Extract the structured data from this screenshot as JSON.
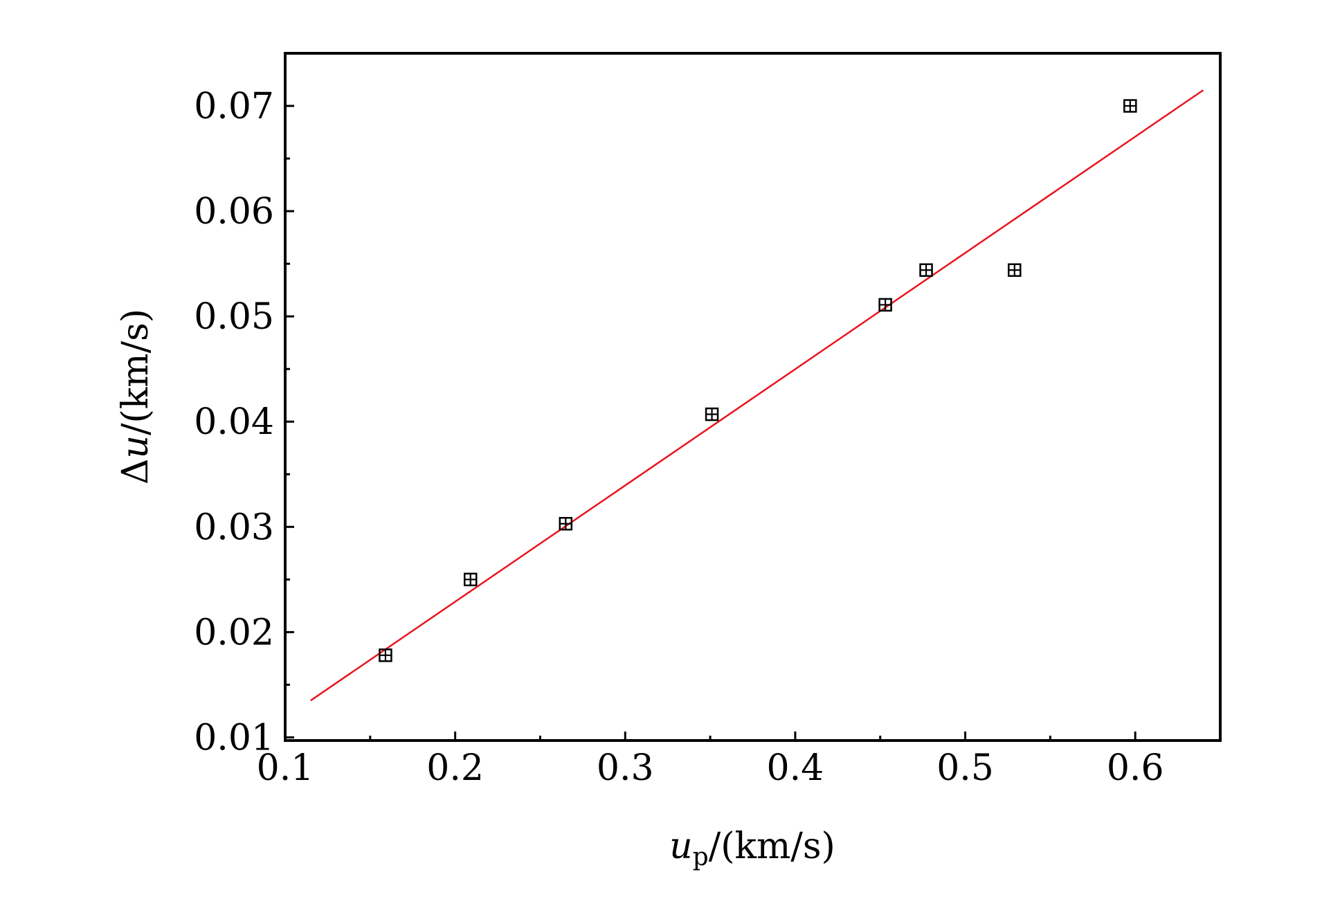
{
  "chart_data": {
    "type": "scatter",
    "xlabel": {
      "var": "u",
      "sub": "p",
      "unit": "/(km/s)"
    },
    "ylabel": {
      "prefix": "Δ",
      "var": "u",
      "unit": "/(km/s)"
    },
    "xlim": [
      0.1,
      0.65
    ],
    "ylim": [
      0.0097,
      0.075
    ],
    "x_ticks": [
      0.1,
      0.2,
      0.3,
      0.4,
      0.5,
      0.6
    ],
    "x_tick_labels": [
      "0.1",
      "0.2",
      "0.3",
      "0.4",
      "0.5",
      "0.6"
    ],
    "y_ticks": [
      0.01,
      0.02,
      0.03,
      0.04,
      0.05,
      0.06,
      0.07
    ],
    "y_tick_labels": [
      "0.01",
      "0.02",
      "0.03",
      "0.04",
      "0.05",
      "0.06",
      "0.07"
    ],
    "grid": false,
    "series": [
      {
        "type": "scatter",
        "marker": "square-cross",
        "color": "#000000",
        "x": [
          0.159,
          0.209,
          0.265,
          0.351,
          0.453,
          0.477,
          0.529,
          0.597
        ],
        "y": [
          0.0178,
          0.025,
          0.0303,
          0.0407,
          0.0511,
          0.0544,
          0.0544,
          0.07
        ]
      },
      {
        "type": "line",
        "color": "#e8141e",
        "x": [
          0.115,
          0.64
        ],
        "y": [
          0.0135,
          0.0715
        ]
      }
    ]
  }
}
